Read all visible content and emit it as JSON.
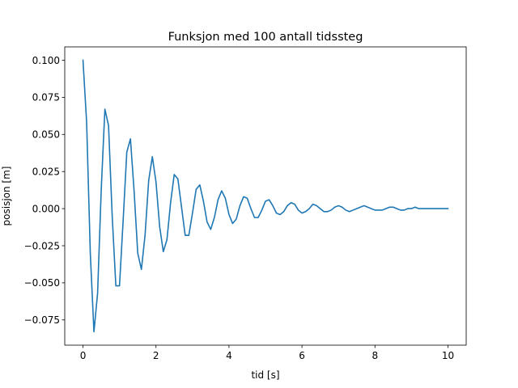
{
  "chart_data": {
    "type": "line",
    "title": "Funksjon med 100 antall tidssteg",
    "xlabel": "tid [s]",
    "ylabel": "posisjon [m]",
    "xlim": [
      -0.5,
      10.5
    ],
    "ylim": [
      -0.092,
      0.109
    ],
    "xticks": [
      0,
      2,
      4,
      6,
      8,
      10
    ],
    "xtick_labels": [
      "0",
      "2",
      "4",
      "6",
      "8",
      "10"
    ],
    "yticks": [
      0.1,
      0.075,
      0.05,
      0.025,
      0.0,
      -0.025,
      -0.05,
      -0.075
    ],
    "ytick_labels": [
      "0.100",
      "0.075",
      "0.050",
      "0.025",
      "0.000",
      "−0.025",
      "−0.050",
      "−0.075"
    ],
    "grid": false,
    "series": [
      {
        "color": "#1f77b4",
        "x": [
          0.0,
          0.1,
          0.2,
          0.3,
          0.4,
          0.5,
          0.6,
          0.7,
          0.8,
          0.9,
          1.0,
          1.1,
          1.2,
          1.3,
          1.4,
          1.5,
          1.6,
          1.7,
          1.8,
          1.9,
          2.0,
          2.1,
          2.2,
          2.3,
          2.4,
          2.5,
          2.6,
          2.7,
          2.8,
          2.9,
          3.0,
          3.1,
          3.2,
          3.3,
          3.4,
          3.5,
          3.6,
          3.7,
          3.8,
          3.9,
          4.0,
          4.1,
          4.2,
          4.3,
          4.4,
          4.5,
          4.6,
          4.7,
          4.8,
          4.9,
          5.0,
          5.1,
          5.2,
          5.3,
          5.4,
          5.5,
          5.6,
          5.7,
          5.8,
          5.9,
          6.0,
          6.1,
          6.2,
          6.3,
          6.4,
          6.5,
          6.6,
          6.7,
          6.8,
          6.9,
          7.0,
          7.1,
          7.2,
          7.3,
          7.4,
          7.5,
          7.6,
          7.7,
          7.8,
          7.9,
          8.0,
          8.1,
          8.2,
          8.3,
          8.4,
          8.5,
          8.6,
          8.7,
          8.8,
          8.9,
          9.0,
          9.1,
          9.2,
          9.3,
          9.4,
          9.5,
          9.6,
          9.7,
          9.8,
          9.9,
          10.0
        ],
        "y": [
          0.1,
          0.058,
          -0.03,
          -0.083,
          -0.057,
          0.013,
          0.067,
          0.056,
          -0.005,
          -0.052,
          -0.052,
          -0.008,
          0.038,
          0.047,
          0.012,
          -0.03,
          -0.041,
          -0.018,
          0.019,
          0.035,
          0.018,
          -0.012,
          -0.029,
          -0.021,
          0.004,
          0.023,
          0.02,
          0.001,
          -0.018,
          -0.018,
          -0.003,
          0.013,
          0.016,
          0.005,
          -0.009,
          -0.014,
          -0.006,
          0.006,
          0.012,
          0.007,
          -0.004,
          -0.01,
          -0.007,
          0.002,
          0.008,
          0.007,
          0.0,
          -0.006,
          -0.006,
          -0.001,
          0.005,
          0.006,
          0.002,
          -0.003,
          -0.004,
          -0.002,
          0.002,
          0.004,
          0.003,
          -0.001,
          -0.003,
          -0.002,
          0.0,
          0.003,
          0.002,
          0.0,
          -0.002,
          -0.002,
          -0.001,
          0.001,
          0.002,
          0.001,
          -0.001,
          -0.002,
          -0.001,
          0.0,
          0.001,
          0.002,
          0.001,
          0.0,
          -0.001,
          -0.001,
          -0.001,
          0.0,
          0.001,
          0.001,
          0.0,
          -0.001,
          -0.001,
          0.0,
          0.0,
          0.001,
          0.0,
          0.0,
          0.0,
          0.0,
          0.0,
          0.0,
          0.0,
          0.0,
          0.0
        ]
      }
    ]
  }
}
